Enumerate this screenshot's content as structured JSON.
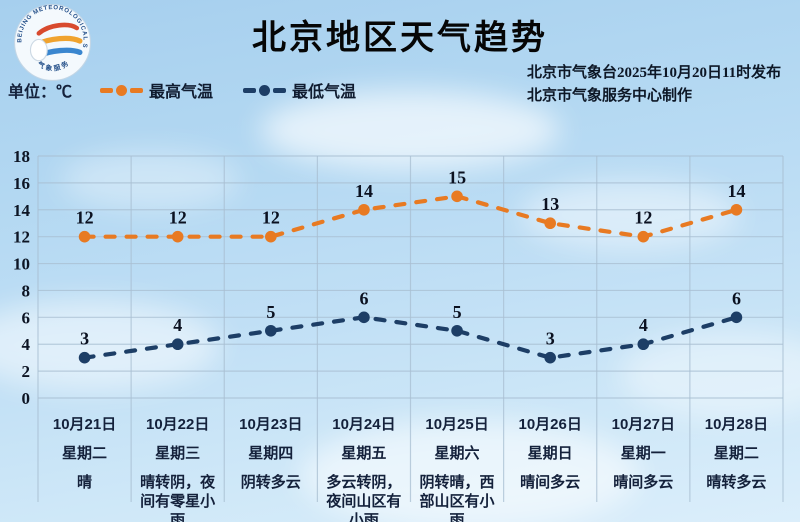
{
  "header": {
    "title": "北京地区天气趋势",
    "unit_label": "单位：℃",
    "logo_arc_text": "BEIJING METEOROLOGICAL SERVICE",
    "logo_cn_text": "气象服务",
    "legend": [
      {
        "label": "最高气温",
        "color": "#e87a22"
      },
      {
        "label": "最低气温",
        "color": "#1d3e66"
      }
    ],
    "publisher_line1": "北京市气象台2025年10月20日11时发布",
    "publisher_line2": "北京市气象服务中心制作"
  },
  "chart_data": {
    "type": "line",
    "title": "北京地区天气趋势",
    "xlabel": "",
    "ylabel": "℃",
    "ylim": [
      0,
      18
    ],
    "yticks": [
      0,
      2,
      4,
      6,
      8,
      10,
      12,
      14,
      16,
      18
    ],
    "grid": true,
    "legend_position": "top",
    "line_style": "dashed",
    "categories": [
      "10月21日",
      "10月22日",
      "10月23日",
      "10月24日",
      "10月25日",
      "10月26日",
      "10月27日",
      "10月28日"
    ],
    "weekdays": [
      "星期二",
      "星期三",
      "星期四",
      "星期五",
      "星期六",
      "星期日",
      "星期一",
      "星期二"
    ],
    "weather": [
      "晴",
      "晴转阴，夜间有零星小雨",
      "阴转多云",
      "多云转阴，夜间山区有小雨",
      "阴转晴，西部山区有小雨",
      "晴间多云",
      "晴间多云",
      "晴转多云"
    ],
    "series": [
      {
        "name": "最高气温",
        "color": "#e87a22",
        "values": [
          12,
          12,
          12,
          14,
          15,
          13,
          12,
          14
        ]
      },
      {
        "name": "最低气温",
        "color": "#1d3e66",
        "values": [
          3,
          4,
          5,
          6,
          5,
          3,
          4,
          6
        ]
      }
    ],
    "colors": {
      "grid": "#a9bfd2",
      "tick_text": "#0d1524",
      "point_label": "#0b1120"
    }
  }
}
